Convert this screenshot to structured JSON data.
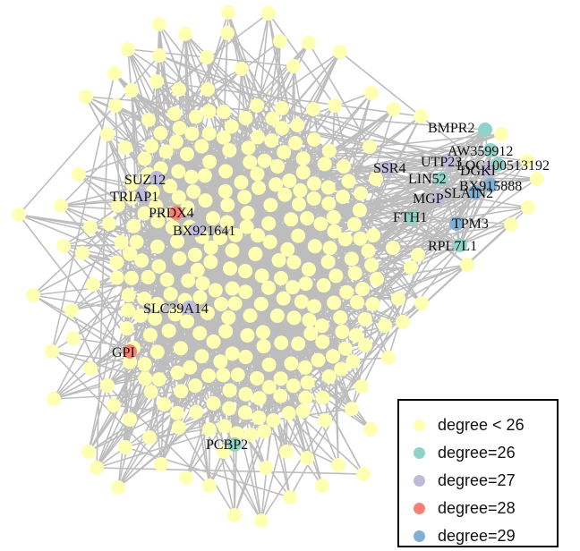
{
  "network": {
    "edge_color": "#bdbdbd",
    "degree_classes": [
      {
        "key": "lt26",
        "label": "degree < 26",
        "color": "#ffffb3"
      },
      {
        "key": "d26",
        "label": "degree=26",
        "color": "#8dd3c7"
      },
      {
        "key": "d27",
        "label": "degree=27",
        "color": "#bebada"
      },
      {
        "key": "d28",
        "label": "degree=28",
        "color": "#fb8072"
      },
      {
        "key": "d29",
        "label": "degree=29",
        "color": "#80b1d3"
      }
    ],
    "labeled_nodes": [
      {
        "name": "BMPR2",
        "class": "d26"
      },
      {
        "name": "AW359912",
        "class": "d26"
      },
      {
        "name": "LOC100513192",
        "class": "d26"
      },
      {
        "name": "UTP23",
        "class": "d27"
      },
      {
        "name": "DGKI",
        "class": "d27"
      },
      {
        "name": "SSR4",
        "class": "d27"
      },
      {
        "name": "LIN52",
        "class": "d26"
      },
      {
        "name": "BX915888",
        "class": "d29"
      },
      {
        "name": "MGP",
        "class": "d27"
      },
      {
        "name": "SLAIN2",
        "class": "d29"
      },
      {
        "name": "FTH1",
        "class": "d26"
      },
      {
        "name": "TPM3",
        "class": "d29"
      },
      {
        "name": "RPL7L1",
        "class": "d26"
      },
      {
        "name": "SUZ12",
        "class": "d27"
      },
      {
        "name": "TRIAP1",
        "class": "d27"
      },
      {
        "name": "PRDX4",
        "class": "d28"
      },
      {
        "name": "BX921641",
        "class": "d27"
      },
      {
        "name": "SLC39A14",
        "class": "d27"
      },
      {
        "name": "GPI",
        "class": "d28"
      },
      {
        "name": "PCBP2",
        "class": "d26"
      }
    ]
  }
}
